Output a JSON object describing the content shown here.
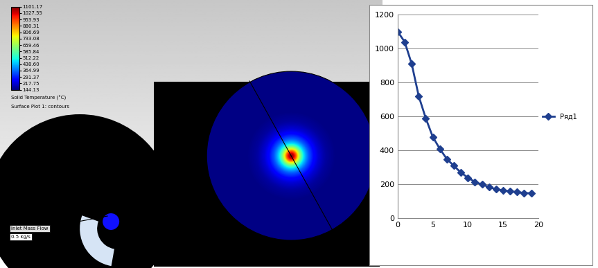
{
  "chart_data": {
    "type": "line",
    "x": [
      0,
      1,
      2,
      3,
      4,
      5,
      6,
      7,
      8,
      9,
      10,
      11,
      12,
      13,
      14,
      15,
      16,
      17,
      18,
      19
    ],
    "series": [
      {
        "name": "Ряд1",
        "color": "#1f3f8f",
        "marker": "diamond",
        "line_style": "solid",
        "values": [
          1101,
          1040,
          910,
          720,
          590,
          480,
          410,
          350,
          310,
          270,
          240,
          215,
          200,
          185,
          172,
          165,
          160,
          155,
          150,
          148
        ]
      }
    ],
    "xlim": [
      0,
      20
    ],
    "xticks": [
      0,
      5,
      10,
      15,
      20
    ],
    "ylim": [
      0,
      1200
    ],
    "yticks": [
      0,
      200,
      400,
      600,
      800,
      1000,
      1200
    ],
    "grid": true,
    "legend": "right"
  },
  "contour_plot": {
    "colorbar_title": "Solid Temperature (°C)",
    "subtitle": "Surface Plot 1: contours",
    "colorbar_range": [
      144.13,
      1101.17
    ],
    "colorbar_ticks": [
      1101.17,
      1027.55,
      953.93,
      880.31,
      806.69,
      733.08,
      659.46,
      585.84,
      512.22,
      {
        "value": 438.6,
        "label": "438.60"
      },
      364.99,
      291.37,
      217.75,
      144.13
    ],
    "annotation": {
      "label": "Inlet Mass Flow",
      "value": "0.5 kg/s"
    }
  }
}
